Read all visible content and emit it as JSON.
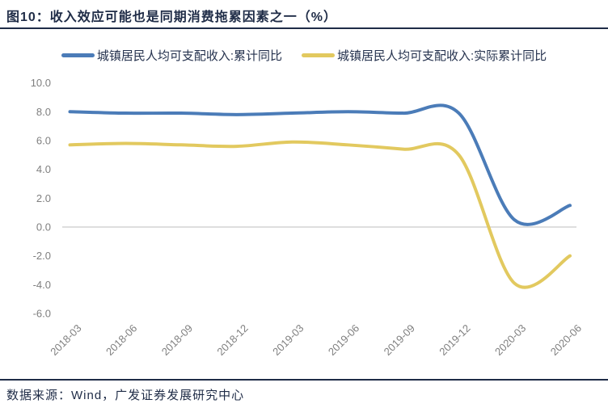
{
  "header": {
    "title": "图10：收入效应可能也是同期消费拖累因素之一（%）"
  },
  "chart_data": {
    "type": "line",
    "title": "收入效应可能也是同期消费拖累因素之一（%）",
    "categories": [
      "2018-03",
      "2018-06",
      "2018-09",
      "2018-12",
      "2019-03",
      "2019-06",
      "2019-09",
      "2019-12",
      "2020-03",
      "2020-06"
    ],
    "series": [
      {
        "name": "城镇居民人均可支配收入:累计同比",
        "color": "#4b7cb8",
        "values": [
          8.0,
          7.9,
          7.9,
          7.8,
          7.9,
          8.0,
          7.9,
          7.9,
          0.5,
          1.5
        ]
      },
      {
        "name": "城镇居民人均可支配收入:实际累计同比",
        "color": "#e2c95f",
        "values": [
          5.7,
          5.8,
          5.7,
          5.6,
          5.9,
          5.7,
          5.4,
          5.0,
          -3.9,
          -2.0
        ]
      }
    ],
    "xlabel": "",
    "ylabel": "",
    "ylim": [
      -6,
      10
    ],
    "yticks": [
      10,
      8,
      6,
      4,
      2,
      0,
      -2,
      -4,
      -6
    ],
    "ytick_labels": [
      "10.0",
      "8.0",
      "6.0",
      "4.0",
      "2.0",
      "0.0",
      "-2.0",
      "-4.0",
      "-6.0"
    ],
    "smooth": true,
    "grid": "zero-line-only",
    "legend_position": "top",
    "axis_label_color": "#7f7f7f",
    "zero_line_color": "#c9c9c9"
  },
  "footer": {
    "source": "数据来源：Wind，广发证券发展研究中心"
  }
}
